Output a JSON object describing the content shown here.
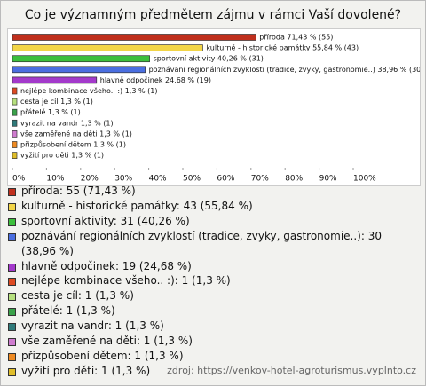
{
  "chart_data": {
    "type": "hbar",
    "title": "Co je významným předmětem zájmu v rámci Vaší dovolené?",
    "values": [
      71.43,
      55.84,
      40.26,
      38.96,
      24.68,
      1.3,
      1.3,
      1.3,
      1.3,
      1.3,
      1.3,
      1.3
    ],
    "value_labels": [
      "příroda 71,43 % (55)",
      "kulturně - historické památky 55,84 % (43)",
      "sportovní aktivity 40,26 % (31)",
      "poznávání regionálních zvyklostí (tradice, zvyky, gastronomie..) 38,96 % (30)",
      "hlavně odpočinek 24,68 % (19)",
      "nejlépe kombinace všeho.. :) 1,3 % (1)",
      "cesta je cíl 1,3 % (1)",
      "přátelé 1,3 % (1)",
      "vyrazit na vandr 1,3 % (1)",
      "vše zaměřené na děti 1,3 % (1)",
      "přizpůsobení dětem 1,3 % (1)",
      "vyžití pro děti 1,3 % (1)"
    ],
    "legend_labels": [
      "příroda: 55 (71,43 %)",
      "kulturně - historické památky: 43 (55,84 %)",
      "sportovní aktivity: 31 (40,26 %)",
      "poznávání regionálních zvyklostí (tradice, zvyky, gastronomie..): 30 (38,96 %)",
      "hlavně odpočinek: 19 (24,68 %)",
      "nejlépe kombinace všeho.. :): 1 (1,3 %)",
      "cesta je cíl: 1 (1,3 %)",
      "přátelé: 1 (1,3 %)",
      "vyrazit na vandr: 1 (1,3 %)",
      "vše zaměřené na děti: 1 (1,3 %)",
      "přizpůsobení dětem: 1 (1,3 %)",
      "vyžití pro děti: 1 (1,3 %)"
    ],
    "colors": [
      "#c0301e",
      "#f2d548",
      "#3cbf3c",
      "#4a6ee0",
      "#a33acb",
      "#dd4a22",
      "#b6e07e",
      "#3aa24a",
      "#2f7a7a",
      "#cf7ccf",
      "#ee8a22",
      "#e0be2a"
    ],
    "xlim": [
      0,
      100
    ],
    "xticks": [
      {
        "value": 0,
        "label": "0%"
      },
      {
        "value": 10,
        "label": "10%"
      },
      {
        "value": 20,
        "label": "20%"
      },
      {
        "value": 30,
        "label": "30%"
      },
      {
        "value": 40,
        "label": "40%"
      },
      {
        "value": 50,
        "label": "50%"
      },
      {
        "value": 60,
        "label": "60%"
      },
      {
        "value": 70,
        "label": "70%"
      },
      {
        "value": 80,
        "label": "80%"
      },
      {
        "value": 90,
        "label": "90%"
      },
      {
        "value": 100,
        "label": "100%"
      }
    ]
  },
  "footer": "zdroj: https://venkov-hotel-agroturismus.vyplnto.cz"
}
